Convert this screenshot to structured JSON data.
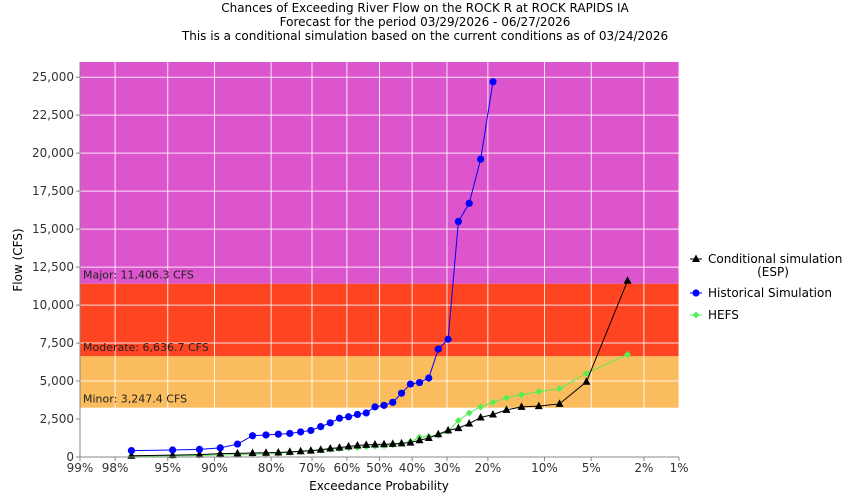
{
  "chart_data": {
    "type": "line",
    "title_lines": [
      "Chances of Exceeding River Flow on the ROCK R at ROCK RAPIDS IA",
      "Forecast for the period 03/29/2026 - 06/27/2026",
      "This is a conditional simulation based on the current conditions as of 03/24/2026"
    ],
    "xlabel": "Exceedance Probability",
    "ylabel": "Flow (CFS)",
    "x_scale": "normal-probability",
    "x_ticks": [
      {
        "value": 99,
        "label": "99%"
      },
      {
        "value": 98,
        "label": "98%"
      },
      {
        "value": 95,
        "label": "95%"
      },
      {
        "value": 90,
        "label": "90%"
      },
      {
        "value": 80,
        "label": "80%"
      },
      {
        "value": 70,
        "label": "70%"
      },
      {
        "value": 60,
        "label": "60%"
      },
      {
        "value": 50,
        "label": "50%"
      },
      {
        "value": 40,
        "label": "40%"
      },
      {
        "value": 30,
        "label": "30%"
      },
      {
        "value": 20,
        "label": "20%"
      },
      {
        "value": 10,
        "label": "10%"
      },
      {
        "value": 5,
        "label": "5%"
      },
      {
        "value": 2,
        "label": "2%"
      },
      {
        "value": 1,
        "label": "1%"
      }
    ],
    "ylim": [
      0,
      26000
    ],
    "y_ticks": [
      {
        "value": 0,
        "label": "0"
      },
      {
        "value": 2500,
        "label": "2,500"
      },
      {
        "value": 5000,
        "label": "5,000"
      },
      {
        "value": 7500,
        "label": "7,500"
      },
      {
        "value": 10000,
        "label": "10,000"
      },
      {
        "value": 12500,
        "label": "12,500"
      },
      {
        "value": 15000,
        "label": "15,000"
      },
      {
        "value": 17500,
        "label": "17,500"
      },
      {
        "value": 20000,
        "label": "20,000"
      },
      {
        "value": 22500,
        "label": "22,500"
      },
      {
        "value": 25000,
        "label": "25,000"
      }
    ],
    "flood_bands": [
      {
        "name": "Minor",
        "label": "Minor: 3,247.4 CFS",
        "threshold": 3247.4,
        "upper": 6636.7,
        "color": "#fbbc5d"
      },
      {
        "name": "Moderate",
        "label": "Moderate: 6,636.7 CFS",
        "threshold": 6636.7,
        "upper": 11406.3,
        "color": "#ff4422"
      },
      {
        "name": "Major",
        "label": "Major: 11,406.3 CFS",
        "threshold": 11406.3,
        "upper": 26000,
        "color": "#dd55cc"
      }
    ],
    "series": [
      {
        "name": "Conditional simulation (ESP)",
        "legend_lines": [
          "Conditional simulation",
          "(ESP)"
        ],
        "color": "#000000",
        "marker": "triangle",
        "points": [
          [
            97.3,
            80
          ],
          [
            94.6,
            120
          ],
          [
            91.9,
            160
          ],
          [
            89.2,
            220
          ],
          [
            86.5,
            240
          ],
          [
            83.8,
            260
          ],
          [
            81.1,
            280
          ],
          [
            78.4,
            300
          ],
          [
            75.7,
            340
          ],
          [
            73.0,
            380
          ],
          [
            70.3,
            420
          ],
          [
            67.6,
            480
          ],
          [
            64.9,
            560
          ],
          [
            62.2,
            620
          ],
          [
            59.5,
            700
          ],
          [
            56.8,
            760
          ],
          [
            54.1,
            800
          ],
          [
            51.4,
            820
          ],
          [
            48.6,
            840
          ],
          [
            45.9,
            860
          ],
          [
            43.2,
            900
          ],
          [
            40.5,
            950
          ],
          [
            37.8,
            1100
          ],
          [
            35.1,
            1250
          ],
          [
            32.4,
            1500
          ],
          [
            29.7,
            1750
          ],
          [
            27.0,
            1900
          ],
          [
            24.3,
            2200
          ],
          [
            21.6,
            2600
          ],
          [
            18.9,
            2800
          ],
          [
            16.2,
            3100
          ],
          [
            13.5,
            3300
          ],
          [
            10.8,
            3350
          ],
          [
            8.1,
            3500
          ],
          [
            5.4,
            4950
          ],
          [
            2.7,
            11600
          ]
        ]
      },
      {
        "name": "Historical Simulation",
        "color": "#0000ff",
        "marker": "circle",
        "points": [
          [
            97.3,
            420
          ],
          [
            94.6,
            460
          ],
          [
            91.9,
            500
          ],
          [
            89.2,
            600
          ],
          [
            86.5,
            850
          ],
          [
            83.8,
            1400
          ],
          [
            81.1,
            1450
          ],
          [
            78.4,
            1500
          ],
          [
            75.7,
            1550
          ],
          [
            73.0,
            1650
          ],
          [
            70.3,
            1750
          ],
          [
            67.6,
            2000
          ],
          [
            64.9,
            2250
          ],
          [
            62.2,
            2550
          ],
          [
            59.5,
            2650
          ],
          [
            56.8,
            2800
          ],
          [
            54.1,
            2900
          ],
          [
            51.4,
            3300
          ],
          [
            48.6,
            3400
          ],
          [
            45.9,
            3600
          ],
          [
            43.2,
            4200
          ],
          [
            40.5,
            4800
          ],
          [
            37.8,
            4900
          ],
          [
            35.1,
            5200
          ],
          [
            32.4,
            7100
          ],
          [
            29.7,
            7750
          ],
          [
            27.0,
            15500
          ],
          [
            24.3,
            16700
          ],
          [
            21.6,
            19600
          ],
          [
            18.9,
            24700
          ]
        ]
      },
      {
        "name": "HEFS",
        "color": "#55ee55",
        "marker": "diamond",
        "points": [
          [
            97.3,
            60
          ],
          [
            94.6,
            80
          ],
          [
            91.9,
            100
          ],
          [
            89.2,
            130
          ],
          [
            86.5,
            160
          ],
          [
            83.8,
            180
          ],
          [
            81.1,
            200
          ],
          [
            78.4,
            240
          ],
          [
            75.7,
            300
          ],
          [
            73.0,
            360
          ],
          [
            70.3,
            400
          ],
          [
            67.6,
            450
          ],
          [
            64.9,
            520
          ],
          [
            62.2,
            560
          ],
          [
            59.5,
            600
          ],
          [
            56.8,
            640
          ],
          [
            54.1,
            680
          ],
          [
            51.4,
            720
          ],
          [
            48.6,
            760
          ],
          [
            45.9,
            800
          ],
          [
            43.2,
            900
          ],
          [
            40.5,
            1000
          ],
          [
            37.8,
            1300
          ],
          [
            35.1,
            1350
          ],
          [
            32.4,
            1450
          ],
          [
            29.7,
            1700
          ],
          [
            27.0,
            2400
          ],
          [
            24.3,
            2900
          ],
          [
            21.6,
            3300
          ],
          [
            18.9,
            3600
          ],
          [
            16.2,
            3900
          ],
          [
            13.5,
            4100
          ],
          [
            10.8,
            4300
          ],
          [
            8.1,
            4500
          ],
          [
            5.4,
            5500
          ],
          [
            2.7,
            6750
          ]
        ]
      }
    ],
    "grid": true,
    "legend_position": "right"
  }
}
